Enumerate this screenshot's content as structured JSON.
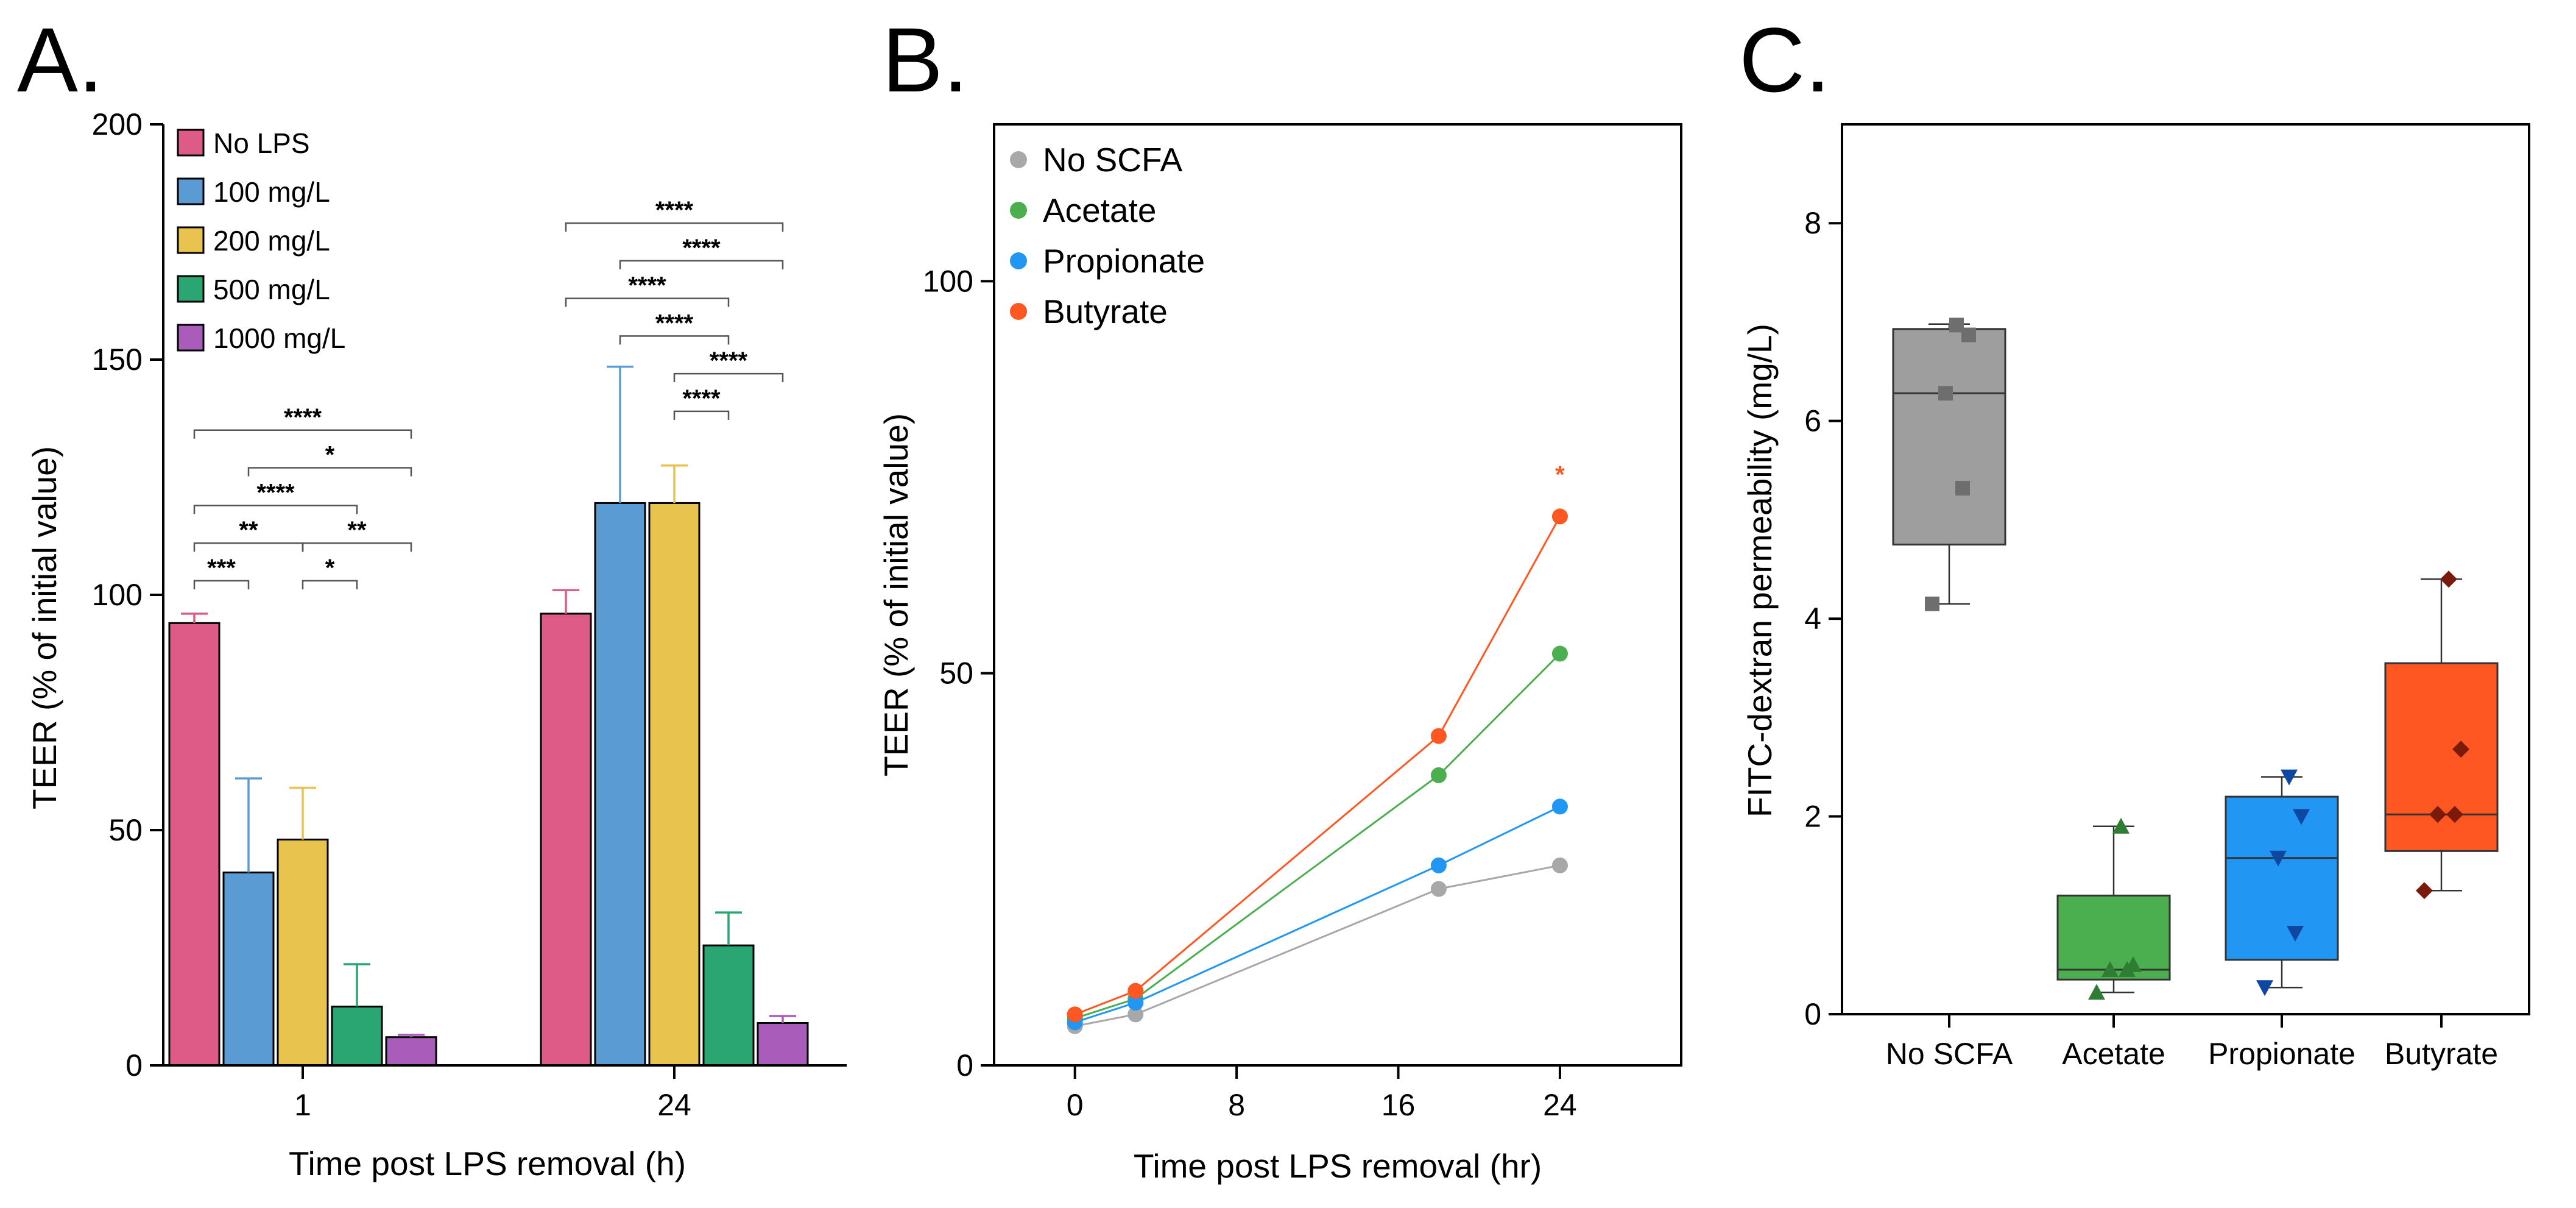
{
  "panels": {
    "a": {
      "letter": "A."
    },
    "b": {
      "letter": "B."
    },
    "c": {
      "letter": "C."
    }
  },
  "chart_data": [
    {
      "id": "A",
      "type": "bar",
      "xlabel": "Time post LPS removal (h)",
      "ylabel": "TEER (% of initial value)",
      "ylim": [
        0,
        200
      ],
      "yticks": [
        0,
        50,
        100,
        150,
        200
      ],
      "categories": [
        "1",
        "24"
      ],
      "legend_position": "top-left",
      "series": [
        {
          "name": "No LPS",
          "color": "#DD5B86",
          "values": [
            94,
            96
          ],
          "errors": [
            2,
            5
          ]
        },
        {
          "name": "100 mg/L",
          "color": "#5A9BD4",
          "values": [
            41,
            119.5
          ],
          "errors": [
            20,
            29
          ]
        },
        {
          "name": "200 mg/L",
          "color": "#E8C34E",
          "values": [
            48,
            119.5
          ],
          "errors": [
            11,
            8
          ]
        },
        {
          "name": "500 mg/L",
          "color": "#2AA672",
          "values": [
            12.5,
            25.5
          ],
          "errors": [
            9,
            7
          ]
        },
        {
          "name": "1000 mg/L",
          "color": "#A95CB9",
          "values": [
            6,
            9
          ],
          "errors": [
            0.5,
            1.5
          ]
        }
      ],
      "significance": [
        {
          "group": 0,
          "from": 0,
          "to": 1,
          "y": 103,
          "label": "***"
        },
        {
          "group": 0,
          "from": 2,
          "to": 3,
          "y": 103,
          "label": "*"
        },
        {
          "group": 0,
          "from": 0,
          "to": 2,
          "y": 111,
          "label": "**"
        },
        {
          "group": 0,
          "from": 2,
          "to": 4,
          "y": 111,
          "label": "**"
        },
        {
          "group": 0,
          "from": 0,
          "to": 3,
          "y": 119,
          "label": "****"
        },
        {
          "group": 0,
          "from": 1,
          "to": 4,
          "y": 127,
          "label": "*"
        },
        {
          "group": 0,
          "from": 0,
          "to": 4,
          "y": 135,
          "label": "****"
        },
        {
          "group": 1,
          "from": 2,
          "to": 3,
          "y": 139,
          "label": "****"
        },
        {
          "group": 1,
          "from": 2,
          "to": 4,
          "y": 147,
          "label": "****"
        },
        {
          "group": 1,
          "from": 1,
          "to": 3,
          "y": 155,
          "label": "****"
        },
        {
          "group": 1,
          "from": 0,
          "to": 3,
          "y": 163,
          "label": "****"
        },
        {
          "group": 1,
          "from": 1,
          "to": 4,
          "y": 171,
          "label": "****"
        },
        {
          "group": 1,
          "from": 0,
          "to": 4,
          "y": 179,
          "label": "****"
        }
      ]
    },
    {
      "id": "B",
      "type": "line",
      "xlabel": "Time post LPS removal (hr)",
      "ylabel": "TEER (% of initial value)",
      "xlim": [
        -4,
        30
      ],
      "ylim": [
        0,
        120
      ],
      "xticks": [
        0,
        8,
        16,
        24
      ],
      "yticks": [
        0,
        50,
        100
      ],
      "x": [
        0,
        3,
        18,
        24
      ],
      "legend_position": "top-left",
      "series": [
        {
          "name": "No SCFA",
          "color": "#A8A8A8",
          "values": [
            5,
            6.5,
            22.5,
            25.5
          ]
        },
        {
          "name": "Acetate",
          "color": "#4BAE4F",
          "values": [
            6,
            8.5,
            37,
            52.5
          ]
        },
        {
          "name": "Propionate",
          "color": "#2196F3",
          "values": [
            5.5,
            8,
            25.5,
            33
          ]
        },
        {
          "name": "Butyrate",
          "color": "#FF5722",
          "values": [
            6.5,
            9.5,
            42,
            70
          ]
        }
      ],
      "annotations": [
        {
          "x": 24,
          "y": 76,
          "text": "*",
          "color": "#FF5722"
        }
      ]
    },
    {
      "id": "C",
      "type": "box",
      "xlabel": "",
      "ylabel": "FITC-dextran permeability (mg/L)",
      "ylim": [
        0,
        9
      ],
      "yticks": [
        0,
        2,
        4,
        6,
        8
      ],
      "categories": [
        "No SCFA",
        "Acetate",
        "Propionate",
        "Butyrate"
      ],
      "boxes": [
        {
          "name": "No SCFA",
          "color": "#9E9E9E",
          "marker_color": "#6E6E6E",
          "marker": "square",
          "min": 4.15,
          "q1": 4.75,
          "median": 6.28,
          "q3": 6.93,
          "max": 6.98,
          "points": [
            4.15,
            5.32,
            6.28,
            6.87,
            6.97
          ]
        },
        {
          "name": "Acetate",
          "color": "#4BAE4F",
          "marker_color": "#2E7D32",
          "marker": "triangle-up",
          "min": 0.22,
          "q1": 0.35,
          "median": 0.45,
          "q3": 1.2,
          "max": 1.9,
          "points": [
            0.22,
            0.45,
            0.45,
            0.5,
            1.9
          ]
        },
        {
          "name": "Propionate",
          "color": "#2196F3",
          "marker_color": "#0D47A1",
          "marker": "triangle-down",
          "min": 0.27,
          "q1": 0.55,
          "median": 1.58,
          "q3": 2.2,
          "max": 2.4,
          "points": [
            0.27,
            0.82,
            1.58,
            2.0,
            2.4
          ]
        },
        {
          "name": "Butyrate",
          "color": "#FF5722",
          "marker_color": "#7B1A0A",
          "marker": "diamond",
          "min": 1.25,
          "q1": 1.65,
          "median": 2.02,
          "q3": 3.55,
          "max": 4.4,
          "points": [
            1.25,
            2.02,
            2.02,
            2.68,
            4.4
          ]
        }
      ]
    }
  ]
}
